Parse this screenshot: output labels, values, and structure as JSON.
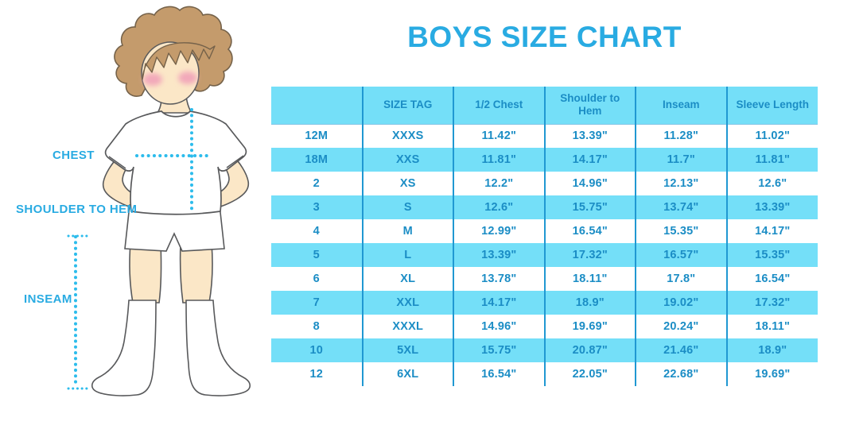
{
  "title": "BOYS SIZE CHART",
  "diagram": {
    "labels": {
      "chest": "CHEST",
      "shoulder_to_hem": "SHOULDER TO HEM",
      "inseam": "INSEAM"
    }
  },
  "chart_data": {
    "type": "table",
    "title": "BOYS SIZE CHART",
    "columns": [
      "",
      "SIZE TAG",
      "1/2 Chest",
      "Shoulder to Hem",
      "Inseam",
      "Sleeve Length"
    ],
    "rows": [
      [
        "12M",
        "XXXS",
        "11.42\"",
        "13.39\"",
        "11.28\"",
        "11.02\""
      ],
      [
        "18M",
        "XXS",
        "11.81\"",
        "14.17\"",
        "11.7\"",
        "11.81\""
      ],
      [
        "2",
        "XS",
        "12.2\"",
        "14.96\"",
        "12.13\"",
        "12.6\""
      ],
      [
        "3",
        "S",
        "12.6\"",
        "15.75\"",
        "13.74\"",
        "13.39\""
      ],
      [
        "4",
        "M",
        "12.99\"",
        "16.54\"",
        "15.35\"",
        "14.17\""
      ],
      [
        "5",
        "L",
        "13.39\"",
        "17.32\"",
        "16.57\"",
        "15.35\""
      ],
      [
        "6",
        "XL",
        "13.78\"",
        "18.11\"",
        "17.8\"",
        "16.54\""
      ],
      [
        "7",
        "XXL",
        "14.17\"",
        "18.9\"",
        "19.02\"",
        "17.32\""
      ],
      [
        "8",
        "XXXL",
        "14.96\"",
        "19.69\"",
        "20.24\"",
        "18.11\""
      ],
      [
        "10",
        "5XL",
        "15.75\"",
        "20.87\"",
        "21.46\"",
        "18.9\""
      ],
      [
        "12",
        "6XL",
        "16.54\"",
        "22.05\"",
        "22.68\"",
        "19.69\""
      ]
    ],
    "layout": {
      "striping": "alternating white and cyan rows, header row cyan",
      "grid": "vertical dividers only"
    }
  },
  "colors": {
    "accent_blue": "#29ABE2",
    "table_text_blue": "#1B8DC5",
    "table_fill_cyan": "#74DFF8",
    "table_divider_blue": "#2098D2",
    "dotted_line_cyan": "#2CBCEC",
    "hair_brown": "#C49B6C",
    "skin": "#FBE7C7",
    "cheek_pink": "#F2A9BA",
    "outline_gray": "#58595B"
  }
}
